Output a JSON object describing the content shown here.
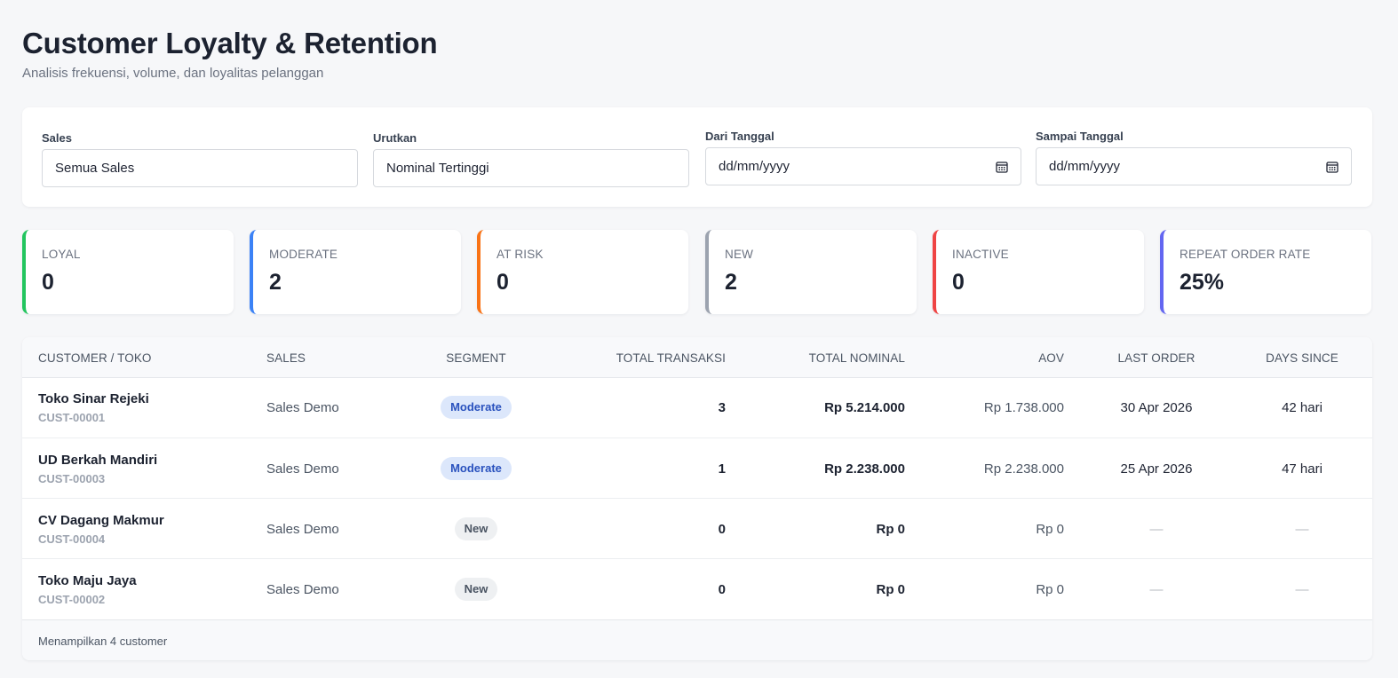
{
  "header": {
    "title": "Customer Loyalty & Retention",
    "subtitle": "Analisis frekuensi, volume, dan loyalitas pelanggan"
  },
  "filters": {
    "sales": {
      "label": "Sales",
      "value": "Semua Sales"
    },
    "sort": {
      "label": "Urutkan",
      "value": "Nominal Tertinggi"
    },
    "from_date": {
      "label": "Dari Tanggal",
      "placeholder": "dd/mm/yyyy"
    },
    "to_date": {
      "label": "Sampai Tanggal",
      "placeholder": "dd/mm/yyyy"
    }
  },
  "stats": [
    {
      "label": "LOYAL",
      "value": "0",
      "color": "#22c55e"
    },
    {
      "label": "MODERATE",
      "value": "2",
      "color": "#3b82f6"
    },
    {
      "label": "AT RISK",
      "value": "0",
      "color": "#f97316"
    },
    {
      "label": "NEW",
      "value": "2",
      "color": "#9ca3af"
    },
    {
      "label": "INACTIVE",
      "value": "0",
      "color": "#ef4444"
    },
    {
      "label": "REPEAT ORDER RATE",
      "value": "25%",
      "color": "#6366f1"
    }
  ],
  "table": {
    "columns": {
      "customer": "CUSTOMER / TOKO",
      "sales": "SALES",
      "segment": "SEGMENT",
      "total_transaksi": "TOTAL TRANSAKSI",
      "total_nominal": "TOTAL NOMINAL",
      "aov": "AOV",
      "last_order": "LAST ORDER",
      "days_since": "DAYS SINCE"
    },
    "rows": [
      {
        "name": "Toko Sinar Rejeki",
        "id": "CUST-00001",
        "sales": "Sales Demo",
        "segment": "Moderate",
        "transaksi": "3",
        "nominal": "Rp 5.214.000",
        "aov": "Rp 1.738.000",
        "last_order": "30 Apr 2026",
        "days_since": "42 hari"
      },
      {
        "name": "UD Berkah Mandiri",
        "id": "CUST-00003",
        "sales": "Sales Demo",
        "segment": "Moderate",
        "transaksi": "1",
        "nominal": "Rp 2.238.000",
        "aov": "Rp 2.238.000",
        "last_order": "25 Apr 2026",
        "days_since": "47 hari"
      },
      {
        "name": "CV Dagang Makmur",
        "id": "CUST-00004",
        "sales": "Sales Demo",
        "segment": "New",
        "transaksi": "0",
        "nominal": "Rp 0",
        "aov": "Rp 0",
        "last_order": "—",
        "days_since": "—"
      },
      {
        "name": "Toko Maju Jaya",
        "id": "CUST-00002",
        "sales": "Sales Demo",
        "segment": "New",
        "transaksi": "0",
        "nominal": "Rp 0",
        "aov": "Rp 0",
        "last_order": "—",
        "days_since": "—"
      }
    ],
    "footer": "Menampilkan 4 customer"
  }
}
